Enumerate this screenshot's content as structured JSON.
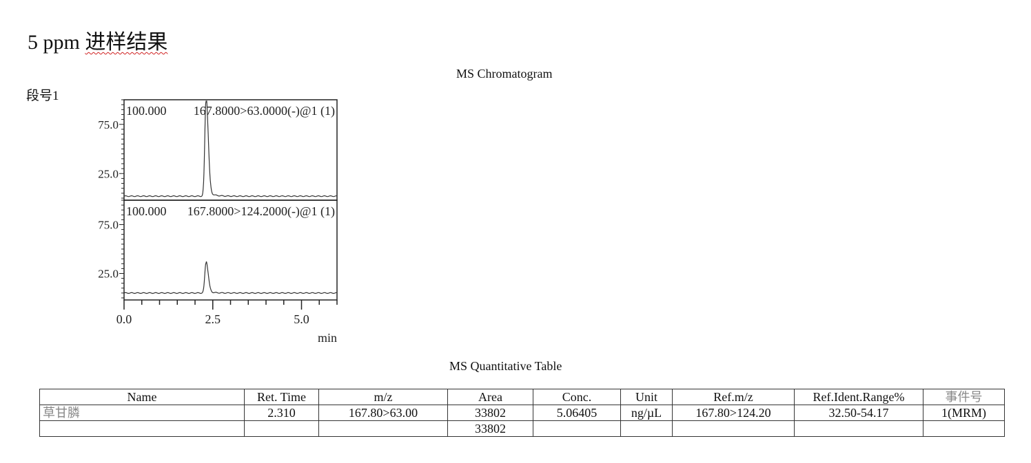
{
  "heading": {
    "prefix": "5 ppm ",
    "text": "进样结果"
  },
  "chromatogram": {
    "title": "MS Chromatogram",
    "segment_label": "段号1"
  },
  "chart_data": {
    "type": "line",
    "title": "MS Chromatogram",
    "xlabel": "min",
    "xlim": [
      0,
      6.0
    ],
    "x_ticks": [
      "0.0",
      "2.5",
      "5.0"
    ],
    "panels": [
      {
        "label": "167.8000>63.0000(-)@1 (1)",
        "overlap_label": "100.000",
        "ylim": [
          0,
          100
        ],
        "y_ticks": [
          "25.0",
          "75.0"
        ],
        "peak": {
          "rt": 2.31,
          "height": 100,
          "baseline": 2
        }
      },
      {
        "label": "167.8000>124.2000(-)@1 (1)",
        "overlap_label": "100.000",
        "ylim": [
          0,
          100
        ],
        "y_ticks": [
          "25.0",
          "75.0"
        ],
        "peak": {
          "rt": 2.31,
          "height": 36,
          "baseline": 5
        }
      }
    ]
  },
  "table": {
    "title": "MS Quantitative Table",
    "headers": [
      "Name",
      "Ret. Time",
      "m/z",
      "Area",
      "Conc.",
      "Unit",
      "Ref.m/z",
      "Ref.Ident.Range%",
      "事件号"
    ],
    "rows": [
      [
        "草甘膦",
        "2.310",
        "167.80>63.00",
        "33802",
        "5.06405",
        "ng/µL",
        "167.80>124.20",
        "32.50-54.17",
        "1(MRM)"
      ],
      [
        "",
        "",
        "",
        "33802",
        "",
        "",
        "",
        "",
        ""
      ]
    ]
  }
}
